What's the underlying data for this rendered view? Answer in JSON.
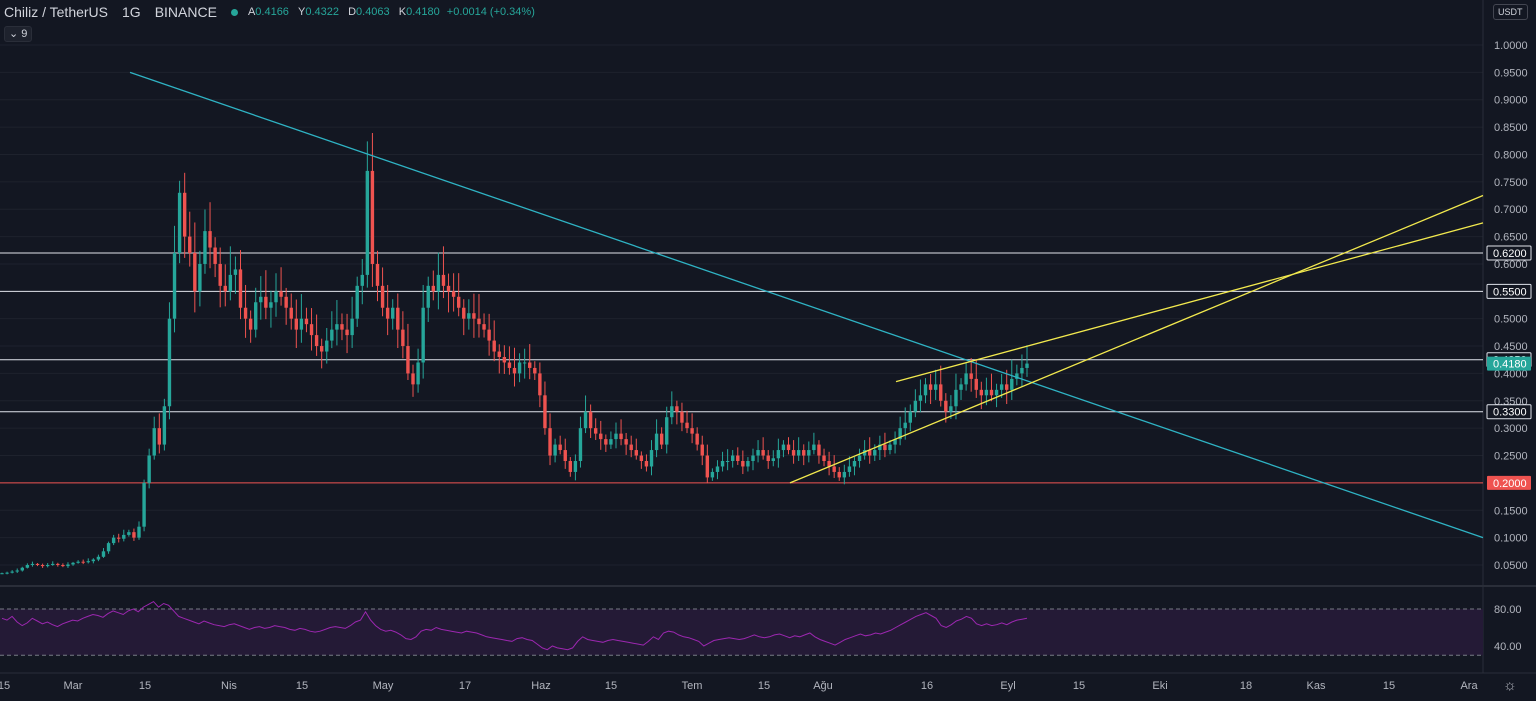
{
  "header": {
    "symbol": "Chiliz / TetherUS",
    "interval": "1G",
    "exchange": "BINANCE",
    "ohlc": {
      "open_label": "A",
      "open": "0.4166",
      "high_label": "Y",
      "high": "0.4322",
      "low_label": "D",
      "low": "0.4063",
      "close_label": "K",
      "close": "0.4180",
      "change": "+0.0014 (+0.34%)"
    },
    "indicator_count": "9",
    "currency": "USDT"
  },
  "colors": {
    "background": "#131722",
    "up": "#26a69a",
    "down": "#ef5350",
    "trendline": "#2fb3c4",
    "wedge": "#f2e94e",
    "rsi": "#9c27b0"
  },
  "chart_data": [
    {
      "type": "candlestick",
      "title": "Chiliz / TetherUS 1G BINANCE",
      "y_axis": {
        "ticks": [
          "1.0000",
          "0.9500",
          "0.9000",
          "0.8500",
          "0.8000",
          "0.7500",
          "0.7000",
          "0.6500",
          "0.6000",
          "0.5500",
          "0.5000",
          "0.4500",
          "0.4000",
          "0.3500",
          "0.3000",
          "0.2500",
          "0.2000",
          "0.1500",
          "0.1000",
          "0.0500"
        ],
        "range": [
          0.0,
          1.0
        ],
        "position": "right"
      },
      "x_axis": {
        "ticks": [
          "15",
          "Mar",
          "15",
          "Nis",
          "15",
          "May",
          "17",
          "Haz",
          "15",
          "Tem",
          "15",
          "Ağu",
          "16",
          "Eyl",
          "15",
          "Eki",
          "18",
          "Kas",
          "15",
          "Ara"
        ]
      },
      "horizontal_levels": [
        {
          "value": 0.62,
          "label": "0.6200",
          "color": "#e0e3eb"
        },
        {
          "value": 0.55,
          "label": "0.5500",
          "color": "#e0e3eb"
        },
        {
          "value": 0.425,
          "label": "0.4250",
          "color": "#e0e3eb"
        },
        {
          "value": 0.418,
          "label": "0.4180",
          "color": "#26a69a",
          "current_price": true
        },
        {
          "value": 0.33,
          "label": "0.3300",
          "color": "#e0e3eb"
        },
        {
          "value": 0.2,
          "label": "0.2000",
          "color": "#ef5350"
        }
      ],
      "trendlines": [
        {
          "name": "descending",
          "from": {
            "x": "Mar 10",
            "y": 0.95
          },
          "to": {
            "x": "Ara 5",
            "y": 0.1
          }
        },
        {
          "name": "wedge-upper",
          "from": {
            "x": "Ağu 9",
            "y": 0.385
          },
          "to": {
            "x": "Ara 5",
            "y": 0.675
          }
        },
        {
          "name": "wedge-lower",
          "from": {
            "x": "Tem 22",
            "y": 0.2
          },
          "to": {
            "x": "Ara 5",
            "y": 0.725
          }
        }
      ],
      "series": [
        {
          "type": "candlestick",
          "interval_days": 1,
          "close_values": [
            0.035,
            0.036,
            0.038,
            0.04,
            0.045,
            0.05,
            0.052,
            0.05,
            0.048,
            0.05,
            0.052,
            0.05,
            0.048,
            0.051,
            0.054,
            0.056,
            0.055,
            0.057,
            0.06,
            0.065,
            0.075,
            0.09,
            0.1,
            0.098,
            0.105,
            0.11,
            0.1,
            0.12,
            0.2,
            0.25,
            0.3,
            0.27,
            0.34,
            0.5,
            0.62,
            0.73,
            0.65,
            0.62,
            0.55,
            0.6,
            0.66,
            0.63,
            0.6,
            0.56,
            0.55,
            0.58,
            0.59,
            0.52,
            0.5,
            0.48,
            0.53,
            0.54,
            0.52,
            0.53,
            0.55,
            0.54,
            0.52,
            0.5,
            0.48,
            0.5,
            0.49,
            0.47,
            0.45,
            0.44,
            0.46,
            0.48,
            0.49,
            0.48,
            0.47,
            0.5,
            0.56,
            0.58,
            0.77,
            0.6,
            0.56,
            0.52,
            0.5,
            0.52,
            0.48,
            0.45,
            0.4,
            0.38,
            0.42,
            0.52,
            0.56,
            0.55,
            0.58,
            0.56,
            0.55,
            0.54,
            0.52,
            0.5,
            0.51,
            0.5,
            0.49,
            0.48,
            0.46,
            0.44,
            0.43,
            0.42,
            0.41,
            0.4,
            0.42,
            0.42,
            0.41,
            0.4,
            0.36,
            0.3,
            0.25,
            0.27,
            0.26,
            0.24,
            0.22,
            0.24,
            0.3,
            0.33,
            0.3,
            0.29,
            0.28,
            0.27,
            0.28,
            0.29,
            0.28,
            0.27,
            0.26,
            0.25,
            0.24,
            0.23,
            0.26,
            0.29,
            0.27,
            0.32,
            0.34,
            0.33,
            0.31,
            0.3,
            0.29,
            0.27,
            0.25,
            0.21,
            0.22,
            0.23,
            0.24,
            0.24,
            0.25,
            0.24,
            0.23,
            0.24,
            0.25,
            0.26,
            0.25,
            0.24,
            0.245,
            0.26,
            0.27,
            0.26,
            0.25,
            0.26,
            0.25,
            0.26,
            0.27,
            0.25,
            0.24,
            0.23,
            0.22,
            0.21,
            0.22,
            0.23,
            0.24,
            0.25,
            0.26,
            0.25,
            0.26,
            0.27,
            0.26,
            0.27,
            0.28,
            0.3,
            0.31,
            0.33,
            0.35,
            0.36,
            0.38,
            0.37,
            0.38,
            0.35,
            0.33,
            0.34,
            0.37,
            0.38,
            0.4,
            0.39,
            0.37,
            0.36,
            0.37,
            0.36,
            0.37,
            0.38,
            0.37,
            0.39,
            0.4,
            0.41,
            0.418
          ]
        }
      ]
    },
    {
      "type": "line",
      "name": "rsi-panel",
      "y_axis": {
        "ticks": [
          "80.00",
          "40.00"
        ],
        "range": [
          20,
          100
        ],
        "position": "right"
      },
      "bands": [
        {
          "value": 80,
          "style": "dashed"
        },
        {
          "value": 30,
          "style": "dashed"
        }
      ],
      "series": [
        {
          "values": [
            70,
            68,
            72,
            66,
            62,
            65,
            70,
            67,
            64,
            66,
            63,
            61,
            64,
            66,
            68,
            67,
            70,
            72,
            74,
            73,
            71,
            75,
            78,
            76,
            74,
            78,
            80,
            77,
            82,
            85,
            88,
            82,
            86,
            84,
            78,
            72,
            70,
            68,
            66,
            64,
            67,
            65,
            63,
            62,
            61,
            63,
            64,
            62,
            60,
            58,
            60,
            61,
            59,
            60,
            62,
            61,
            60,
            58,
            57,
            59,
            58,
            56,
            55,
            56,
            58,
            60,
            61,
            60,
            59,
            62,
            66,
            68,
            77,
            68,
            62,
            58,
            56,
            57,
            55,
            52,
            48,
            47,
            50,
            56,
            58,
            57,
            60,
            58,
            57,
            56,
            55,
            54,
            56,
            55,
            54,
            52,
            50,
            49,
            48,
            47,
            46,
            45,
            48,
            49,
            47,
            46,
            42,
            38,
            36,
            40,
            38,
            37,
            36,
            38,
            45,
            50,
            47,
            46,
            45,
            44,
            46,
            47,
            46,
            45,
            44,
            43,
            42,
            41,
            45,
            50,
            47,
            54,
            56,
            55,
            52,
            50,
            49,
            47,
            45,
            40,
            43,
            46,
            47,
            48,
            49,
            48,
            47,
            48,
            50,
            52,
            50,
            49,
            50,
            52,
            53,
            51,
            49,
            51,
            50,
            52,
            54,
            50,
            47,
            45,
            43,
            41,
            44,
            47,
            49,
            51,
            53,
            51,
            52,
            54,
            53,
            55,
            57,
            60,
            63,
            66,
            69,
            72,
            74,
            76,
            73,
            70,
            62,
            60,
            63,
            67,
            69,
            72,
            70,
            64,
            62,
            64,
            62,
            63,
            65,
            63,
            66,
            68,
            69,
            70
          ]
        }
      ]
    }
  ]
}
